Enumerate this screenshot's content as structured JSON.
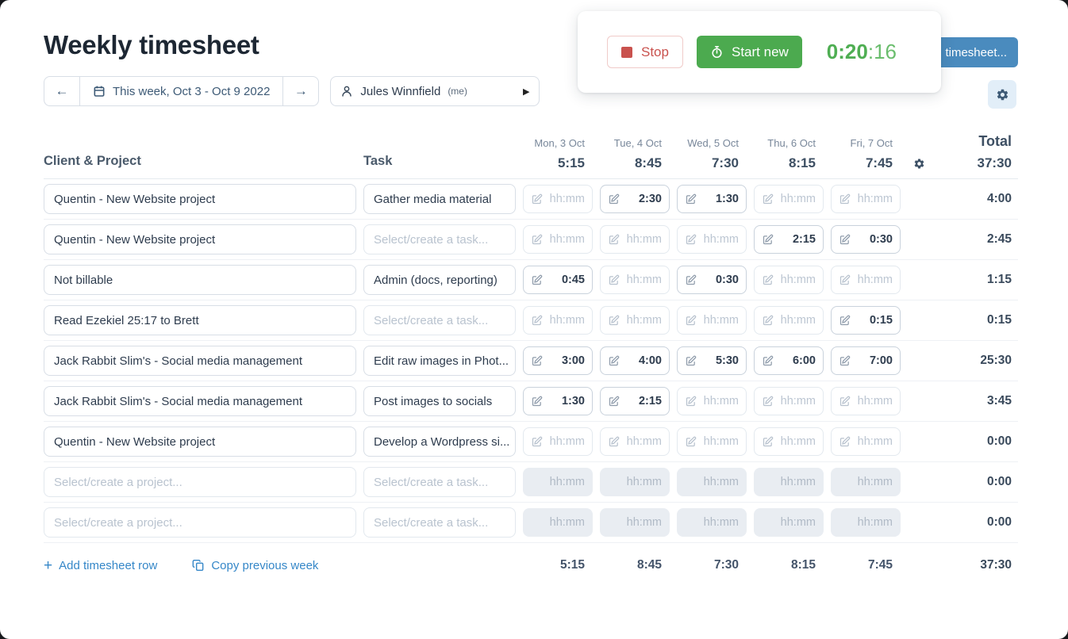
{
  "page": {
    "title": "Weekly timesheet"
  },
  "toolbar": {
    "week_nav": {
      "label": "This week, Oct 3 - Oct 9 2022"
    },
    "user_select": {
      "name": "Jules Winnfield",
      "suffix": "(me)"
    }
  },
  "timer_card": {
    "stop_label": "Stop",
    "start_label": "Start new",
    "time_hhmm": "0:20",
    "time_ss": ":16"
  },
  "overlapped_button": {
    "visible_label": "timesheet..."
  },
  "table": {
    "columns": {
      "client": "Client & Project",
      "task": "Task",
      "total": "Total"
    },
    "days": [
      {
        "name": "Mon, 3 Oct",
        "total": "5:15"
      },
      {
        "name": "Tue, 4 Oct",
        "total": "8:45"
      },
      {
        "name": "Wed, 5 Oct",
        "total": "7:30"
      },
      {
        "name": "Thu, 6 Oct",
        "total": "8:15"
      },
      {
        "name": "Fri, 7 Oct",
        "total": "7:45"
      }
    ],
    "week_total": "37:30",
    "placeholders": {
      "time": "hh:mm",
      "project": "Select/create a project...",
      "task": "Select/create a task..."
    },
    "rows": [
      {
        "project": "Quentin - New Website project",
        "task": "Gather media material",
        "times": [
          "",
          "2:30",
          "1:30",
          "",
          ""
        ],
        "total": "4:00",
        "disabled": false
      },
      {
        "project": "Quentin - New Website project",
        "task": "",
        "times": [
          "",
          "",
          "",
          "2:15",
          "0:30"
        ],
        "total": "2:45",
        "disabled": false
      },
      {
        "project": "Not billable",
        "task": "Admin (docs, reporting)",
        "times": [
          "0:45",
          "",
          "0:30",
          "",
          ""
        ],
        "total": "1:15",
        "disabled": false
      },
      {
        "project": "Read Ezekiel 25:17 to Brett",
        "task": "",
        "times": [
          "",
          "",
          "",
          "",
          "0:15"
        ],
        "total": "0:15",
        "disabled": false
      },
      {
        "project": "Jack Rabbit Slim's - Social media management",
        "task": "Edit raw images in Phot...",
        "times": [
          "3:00",
          "4:00",
          "5:30",
          "6:00",
          "7:00"
        ],
        "total": "25:30",
        "disabled": false
      },
      {
        "project": "Jack Rabbit Slim's - Social media management",
        "task": "Post images to socials",
        "times": [
          "1:30",
          "2:15",
          "",
          "",
          ""
        ],
        "total": "3:45",
        "disabled": false
      },
      {
        "project": "Quentin - New Website project",
        "task": "Develop a Wordpress si...",
        "times": [
          "",
          "",
          "",
          "",
          ""
        ],
        "total": "0:00",
        "disabled": false
      },
      {
        "project": "",
        "task": "",
        "times": [
          "",
          "",
          "",
          "",
          ""
        ],
        "total": "0:00",
        "disabled": true
      },
      {
        "project": "",
        "task": "",
        "times": [
          "",
          "",
          "",
          "",
          ""
        ],
        "total": "0:00",
        "disabled": true
      }
    ],
    "footer": {
      "add_row": "Add timesheet row",
      "copy_week": "Copy previous week",
      "day_totals": [
        "5:15",
        "8:45",
        "7:30",
        "8:15",
        "7:45"
      ],
      "week_total": "37:30"
    }
  },
  "colors": {
    "accent_blue": "#3587c8",
    "button_blue": "#4a8bbe",
    "green": "#4caa4f",
    "timer_green": "#4fae53",
    "red": "#c9524e"
  }
}
